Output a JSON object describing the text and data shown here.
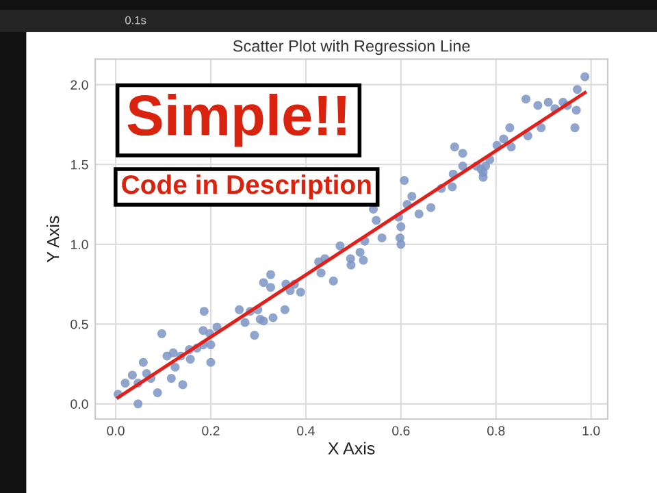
{
  "chart_data": {
    "type": "scatter",
    "title": "Scatter Plot with Regression Line",
    "xlabel": "X Axis",
    "ylabel": "Y Axis",
    "xlim": [
      -0.043,
      1.035
    ],
    "ylim": [
      -0.095,
      2.16
    ],
    "xticks": [
      {
        "value": 0,
        "label": "0.0"
      },
      0.2,
      0.4,
      0.6,
      0.8,
      {
        "value": 1,
        "label": "1.0"
      }
    ],
    "yticks": [
      {
        "value": 0,
        "label": "0.0"
      },
      0.5,
      {
        "value": 1,
        "label": "1.0"
      },
      1.5,
      {
        "value": 2,
        "label": "2.0"
      }
    ],
    "grid": true,
    "annotations": [
      "Simple!!",
      "Code in Description",
      "0.1s"
    ],
    "series": [
      {
        "marker": "circle",
        "color": "#7b95c4",
        "x": [
          0.005,
          0.02,
          0.035,
          0.047,
          0.047,
          0.058,
          0.065,
          0.074,
          0.088,
          0.097,
          0.108,
          0.117,
          0.121,
          0.125,
          0.137,
          0.141,
          0.155,
          0.157,
          0.171,
          0.184,
          0.186,
          0.184,
          0.198,
          0.2,
          0.2,
          0.213,
          0.26,
          0.272,
          0.283,
          0.292,
          0.299,
          0.304,
          0.311,
          0.311,
          0.326,
          0.326,
          0.331,
          0.356,
          0.358,
          0.367,
          0.376,
          0.389,
          0.427,
          0.432,
          0.44,
          0.458,
          0.472,
          0.494,
          0.495,
          0.514,
          0.521,
          0.524,
          0.542,
          0.548,
          0.56,
          0.595,
          0.6,
          0.598,
          0.6,
          0.607,
          0.613,
          0.623,
          0.638,
          0.663,
          0.685,
          0.708,
          0.71,
          0.713,
          0.73,
          0.73,
          0.759,
          0.769,
          0.773,
          0.773,
          0.778,
          0.787,
          0.802,
          0.816,
          0.829,
          0.832,
          0.863,
          0.867,
          0.888,
          0.895,
          0.91,
          0.924,
          0.941,
          0.95,
          0.966,
          0.969,
          0.971,
          0.987
        ],
        "values": [
          0.06,
          0.13,
          0.18,
          0.0,
          0.13,
          0.26,
          0.19,
          0.16,
          0.07,
          0.44,
          0.3,
          0.16,
          0.32,
          0.23,
          0.3,
          0.12,
          0.34,
          0.28,
          0.35,
          0.46,
          0.58,
          0.37,
          0.44,
          0.37,
          0.26,
          0.48,
          0.59,
          0.51,
          0.58,
          0.43,
          0.59,
          0.53,
          0.76,
          0.52,
          0.81,
          0.73,
          0.54,
          0.59,
          0.75,
          0.71,
          0.75,
          0.7,
          0.89,
          0.82,
          0.91,
          0.77,
          0.99,
          0.91,
          0.87,
          0.95,
          0.9,
          1.02,
          1.22,
          1.15,
          1.04,
          1.17,
          1.11,
          1.04,
          1.0,
          1.4,
          1.25,
          1.3,
          1.19,
          1.23,
          1.35,
          1.36,
          1.44,
          1.61,
          1.57,
          1.49,
          1.49,
          1.47,
          1.45,
          1.42,
          1.49,
          1.53,
          1.62,
          1.66,
          1.73,
          1.61,
          1.91,
          1.68,
          1.87,
          1.73,
          1.89,
          1.85,
          1.89,
          1.87,
          1.73,
          1.84,
          1.97,
          2.05
        ]
      },
      {
        "type": "line",
        "marker": "none",
        "color": "#e0201b",
        "x": [
          0.005,
          0.987
        ],
        "values": [
          0.04,
          1.95
        ]
      }
    ]
  }
}
